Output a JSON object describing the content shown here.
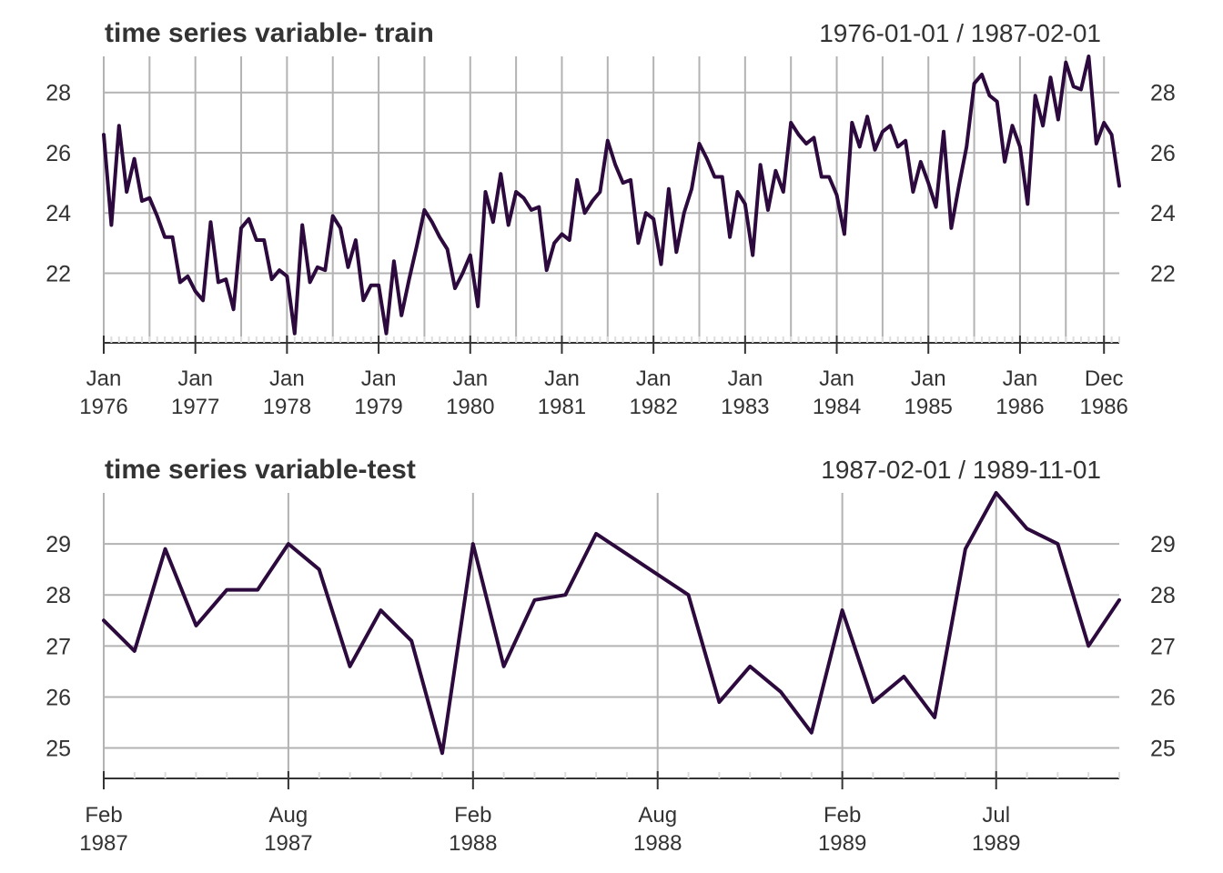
{
  "chart_data": [
    {
      "type": "line",
      "title": "time series variable- train",
      "range_label": "1976-01-01 / 1987-02-01",
      "ylim": [
        19.9,
        29.2
      ],
      "yticks": [
        22,
        24,
        26,
        28
      ],
      "grid": true,
      "x_start": "1976-01",
      "x_end": "1987-02",
      "x_ticks": [
        {
          "date": "1976-01",
          "label": [
            "Jan",
            "1976"
          ]
        },
        {
          "date": "1977-01",
          "label": [
            "Jan",
            "1977"
          ]
        },
        {
          "date": "1978-01",
          "label": [
            "Jan",
            "1978"
          ]
        },
        {
          "date": "1979-01",
          "label": [
            "Jan",
            "1979"
          ]
        },
        {
          "date": "1980-01",
          "label": [
            "Jan",
            "1980"
          ]
        },
        {
          "date": "1981-01",
          "label": [
            "Jan",
            "1981"
          ]
        },
        {
          "date": "1982-01",
          "label": [
            "Jan",
            "1982"
          ]
        },
        {
          "date": "1983-01",
          "label": [
            "Jan",
            "1983"
          ]
        },
        {
          "date": "1984-01",
          "label": [
            "Jan",
            "1984"
          ]
        },
        {
          "date": "1985-01",
          "label": [
            "Jan",
            "1985"
          ]
        },
        {
          "date": "1986-01",
          "label": [
            "Jan",
            "1986"
          ]
        },
        {
          "date": "1986-12",
          "label": [
            "Dec",
            "1986"
          ]
        }
      ],
      "x_gridlines": [
        "1976-01",
        "1976-07",
        "1977-01",
        "1977-07",
        "1978-01",
        "1978-07",
        "1979-01",
        "1979-07",
        "1980-01",
        "1980-07",
        "1981-01",
        "1981-07",
        "1982-01",
        "1982-07",
        "1983-01",
        "1983-07",
        "1984-01",
        "1984-07",
        "1985-01",
        "1985-07",
        "1986-01",
        "1986-07",
        "1986-12"
      ],
      "series": [
        {
          "color": "#2d0a3d",
          "start": "1976-01",
          "values": [
            26.6,
            23.6,
            26.9,
            24.7,
            25.8,
            24.4,
            24.5,
            23.9,
            23.2,
            23.2,
            21.7,
            21.9,
            21.4,
            21.1,
            23.7,
            21.7,
            21.8,
            20.8,
            23.5,
            23.8,
            23.1,
            23.1,
            21.8,
            22.1,
            21.9,
            20.0,
            23.6,
            21.7,
            22.2,
            22.1,
            23.9,
            23.5,
            22.2,
            23.1,
            21.1,
            21.6,
            21.6,
            20.0,
            22.4,
            20.6,
            21.8,
            22.9,
            24.1,
            23.7,
            23.2,
            22.8,
            21.5,
            22.0,
            22.6,
            20.9,
            24.7,
            23.7,
            25.3,
            23.6,
            24.7,
            24.5,
            24.1,
            24.2,
            22.1,
            23.0,
            23.3,
            23.1,
            25.1,
            24.0,
            24.4,
            24.7,
            26.4,
            25.6,
            25.0,
            25.1,
            23.0,
            24.0,
            23.8,
            22.3,
            24.8,
            22.7,
            24.0,
            24.8,
            26.3,
            25.8,
            25.2,
            25.2,
            23.2,
            24.7,
            24.3,
            22.6,
            25.6,
            24.1,
            25.4,
            24.7,
            27.0,
            26.6,
            26.3,
            26.5,
            25.2,
            25.2,
            24.6,
            23.3,
            27.0,
            26.2,
            27.2,
            26.1,
            26.7,
            26.9,
            26.2,
            26.4,
            24.7,
            25.7,
            25.0,
            24.2,
            26.7,
            23.5,
            24.9,
            26.2,
            28.3,
            28.6,
            27.9,
            27.7,
            25.7,
            26.9,
            26.2,
            24.3,
            27.9,
            26.9,
            28.5,
            27.1,
            29.0,
            28.2,
            28.1,
            29.2,
            26.3,
            27.0,
            26.6,
            24.9
          ]
        }
      ]
    },
    {
      "type": "line",
      "title": "time series variable-test",
      "range_label": "1987-02-01 / 1989-11-01",
      "ylim": [
        24.6,
        30.0
      ],
      "yticks": [
        25,
        26,
        27,
        28,
        29
      ],
      "grid": true,
      "x_start": "1987-02",
      "x_end": "1989-11",
      "x_ticks": [
        {
          "date": "1987-02",
          "label": [
            "Feb",
            "1987"
          ]
        },
        {
          "date": "1987-08",
          "label": [
            "Aug",
            "1987"
          ]
        },
        {
          "date": "1988-02",
          "label": [
            "Feb",
            "1988"
          ]
        },
        {
          "date": "1988-08",
          "label": [
            "Aug",
            "1988"
          ]
        },
        {
          "date": "1989-02",
          "label": [
            "Feb",
            "1989"
          ]
        },
        {
          "date": "1989-07",
          "label": [
            "Jul",
            "1989"
          ]
        }
      ],
      "x_gridlines": [
        "1987-02",
        "1987-08",
        "1988-02",
        "1988-08",
        "1989-02",
        "1989-07"
      ],
      "series": [
        {
          "color": "#2d0a3d",
          "start": "1987-02",
          "values": [
            27.5,
            26.9,
            28.9,
            27.4,
            28.1,
            28.1,
            29.0,
            28.5,
            26.6,
            27.7,
            27.1,
            24.9,
            29.0,
            26.6,
            27.9,
            28.0,
            29.2,
            28.8,
            28.4,
            28.0,
            25.9,
            26.6,
            26.1,
            25.3,
            27.7,
            25.9,
            26.4,
            25.6,
            28.9,
            30.0,
            29.3,
            29.0,
            27.0,
            27.9
          ]
        }
      ]
    }
  ]
}
